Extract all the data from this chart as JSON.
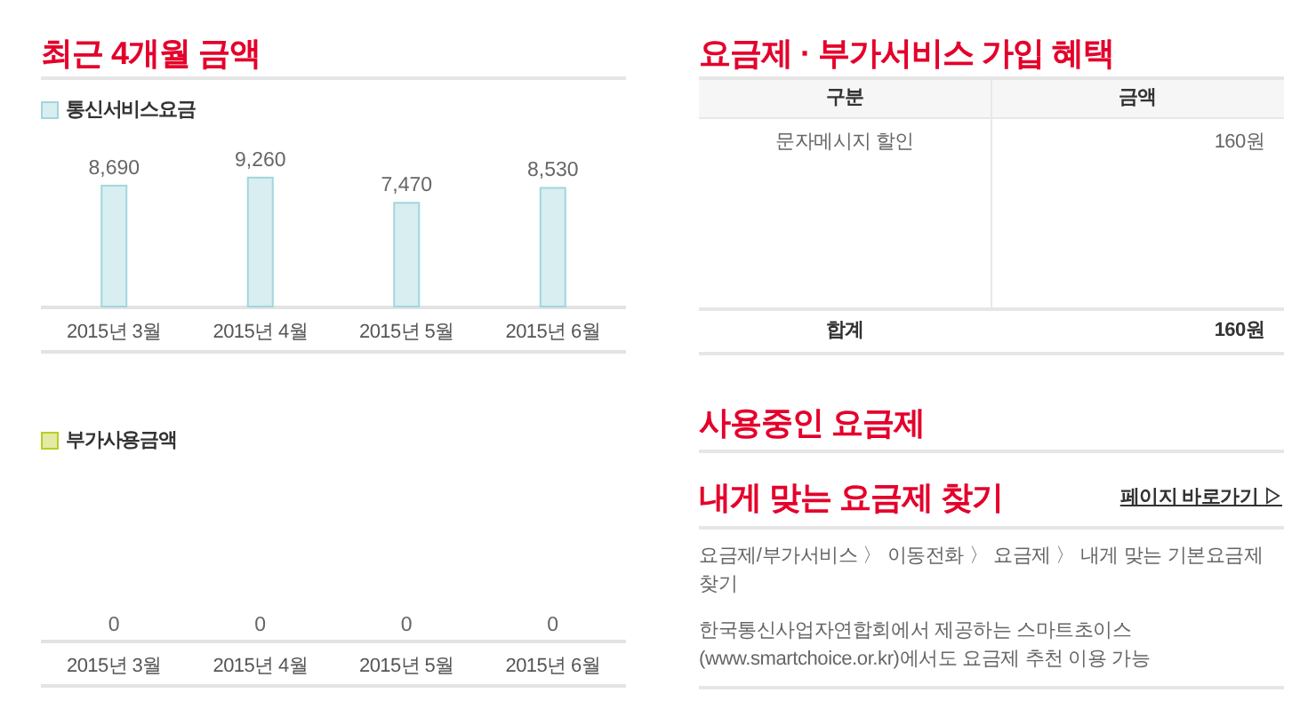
{
  "chart_data": [
    {
      "type": "bar",
      "title": "최근 4개월 금액",
      "categories": [
        "2015년 3월",
        "2015년 4월",
        "2015년 5월",
        "2015년 6월"
      ],
      "series": [
        {
          "name": "통신서비스요금",
          "color": "#d8eef1",
          "values": [
            8690,
            9260,
            7470,
            8530
          ],
          "value_labels": [
            "8,690",
            "9,260",
            "7,470",
            "8,530"
          ]
        }
      ],
      "legend": "top left"
    },
    {
      "type": "other",
      "categories": [
        "2015년 3월",
        "2015년 4월",
        "2015년 5월",
        "2015년 6월"
      ],
      "series": [
        {
          "name": "부가사용금액",
          "color": "#e2eaa3",
          "values": [
            0,
            0,
            0,
            0
          ]
        }
      ],
      "data_labels": true,
      "legend": "top left"
    },
    {
      "type": "other",
      "title": "요금제 · 부가서비스 가입 혜택",
      "annotations": [
        "구분",
        "금액",
        "문자메시지 할인",
        "160원",
        "합계",
        "160원"
      ]
    },
    {
      "type": "other",
      "title": "사용중인 요금제"
    },
    {
      "type": "other",
      "title": "내게 맞는 요금제 찾기",
      "subtitle": "페이지 바로가기 ▷",
      "annotations": [
        "요금제/부가서비스 〉 이동전화 〉 요금제 〉 내게 맞는 기본요금제 찾기",
        "한국통신사업자연합회에서 제공하는 스마트초이스 (www.smartchoice.or.kr)에서도 요금제 추천 이용 가능"
      ]
    }
  ]
}
